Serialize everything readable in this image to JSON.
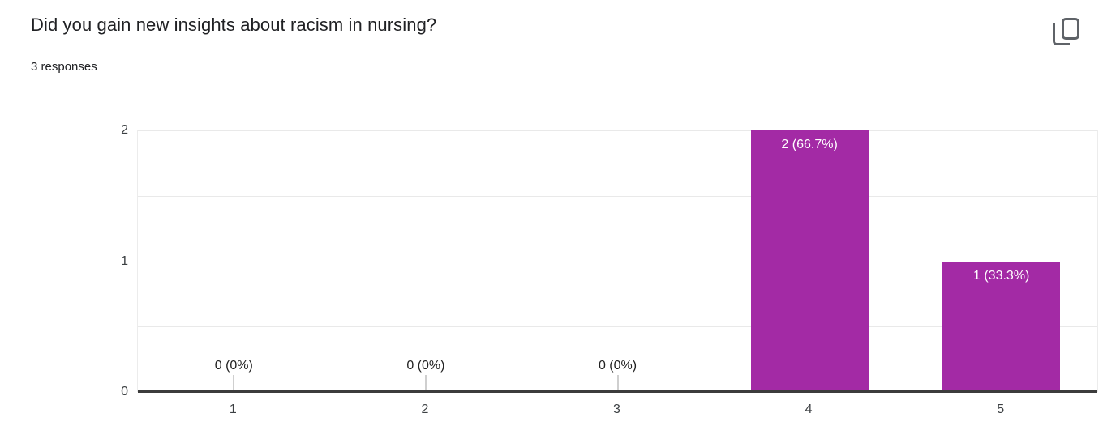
{
  "header": {
    "title": "Did you gain new insights about racism in nursing?",
    "subtitle": "3 responses"
  },
  "toolbar": {
    "copy_icon": "copy-icon"
  },
  "chart_data": {
    "type": "bar",
    "title": "Did you gain new insights about racism in nursing?",
    "subtitle": "3 responses",
    "total_responses": 3,
    "categories": [
      "1",
      "2",
      "3",
      "4",
      "5"
    ],
    "values": [
      0,
      0,
      0,
      2,
      1
    ],
    "value_labels": [
      "0 (0%)",
      "0 (0%)",
      "0 (0%)",
      "2 (66.7%)",
      "1 (33.3%)"
    ],
    "xlabel": "",
    "ylabel": "",
    "ylim": [
      0,
      2
    ],
    "yticks": [
      0,
      1,
      2
    ],
    "gridline_step": 0.5,
    "grid": true,
    "legend": "none",
    "colors": {
      "bar": "#a32aa5",
      "bar_label": "#ffffff",
      "zero_label": "#212121",
      "zero_stub": "#cfcfcf",
      "axis": "#3c3c3c",
      "gridline": "#e9e9e9",
      "tick_label": "#3c4043",
      "title": "#202124",
      "icon": "#5f6368"
    }
  }
}
